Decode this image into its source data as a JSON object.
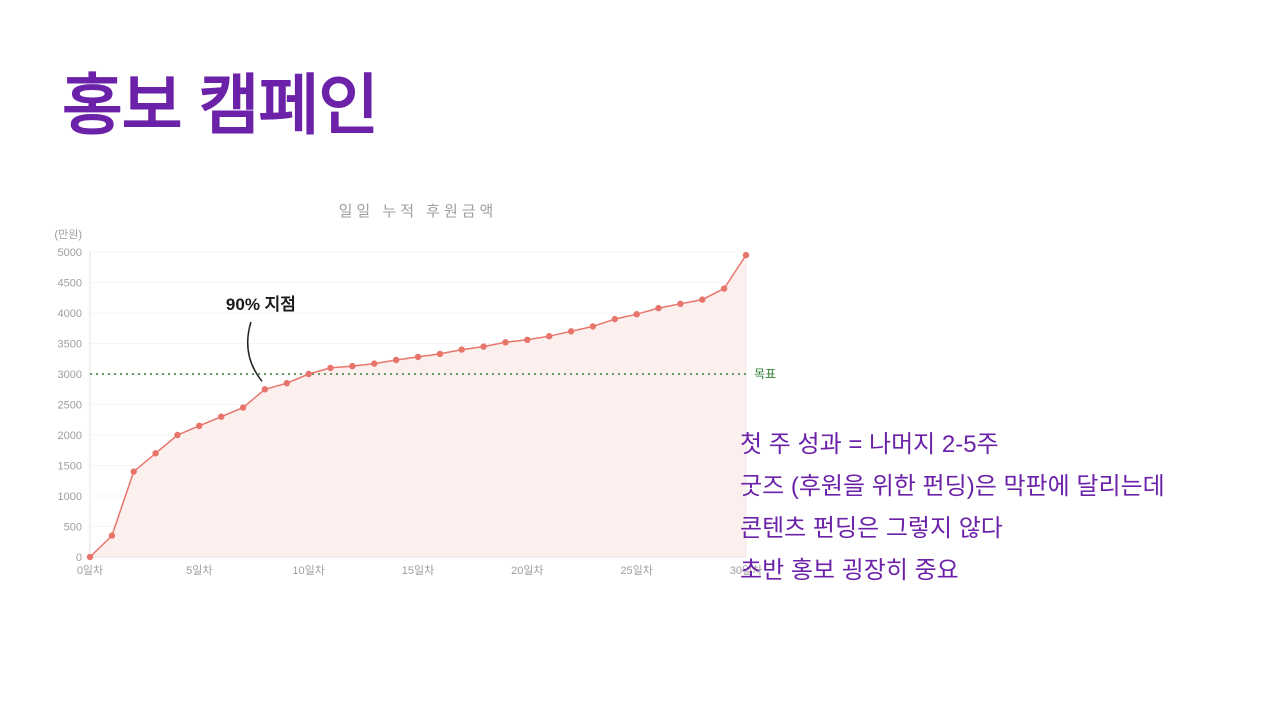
{
  "slide": {
    "title": "홍보 캠페인",
    "notes": [
      "첫 주 성과 = 나머지 2-5주",
      "굿즈 (후원을 위한 펀딩)은 막판에 달리는데",
      "콘텐츠 펀딩은 그렇지 않다",
      "초반 홍보 굉장히 중요"
    ]
  },
  "chart_data": {
    "type": "line",
    "title": "일일 누적 후원금액",
    "unit_label": "(만원)",
    "x": [
      0,
      1,
      2,
      3,
      4,
      5,
      6,
      7,
      8,
      9,
      10,
      11,
      12,
      13,
      14,
      15,
      16,
      17,
      18,
      19,
      20,
      21,
      22,
      23,
      24,
      25,
      26,
      27,
      28,
      29,
      30
    ],
    "values": [
      0,
      350,
      1400,
      1700,
      2000,
      2150,
      2300,
      2450,
      2750,
      2850,
      3000,
      3100,
      3130,
      3170,
      3230,
      3280,
      3330,
      3400,
      3450,
      3520,
      3560,
      3620,
      3700,
      3780,
      3900,
      3980,
      4080,
      4150,
      4220,
      4400,
      4950
    ],
    "xlim": [
      0,
      30
    ],
    "ylim": [
      0,
      5000
    ],
    "x_ticks": [
      0,
      5,
      10,
      15,
      20,
      25,
      30
    ],
    "x_tick_labels": [
      "0일차",
      "5일차",
      "10일차",
      "15일차",
      "20일차",
      "25일차",
      "30일차"
    ],
    "y_ticks": [
      0,
      500,
      1000,
      1500,
      2000,
      2500,
      3000,
      3500,
      4000,
      4500,
      5000
    ],
    "grid": true,
    "legend": "none",
    "line_color": "#e8756b",
    "marker_color": "#e8756b",
    "area_fill": "#fcf0ee",
    "axis_color": "#e3e3e3",
    "tick_label_color": "#9e9e9e",
    "goal_line": {
      "value": 3000,
      "label": "목표",
      "color": "#2e7d32",
      "style": "dotted"
    },
    "annotation": {
      "text": "90% 지점",
      "point_day": 8,
      "point_value": 2750,
      "color": "#1a1a1a"
    }
  },
  "colors": {
    "accent_purple": "#6b21a8",
    "chart_title_gray": "#9e9e9e"
  }
}
